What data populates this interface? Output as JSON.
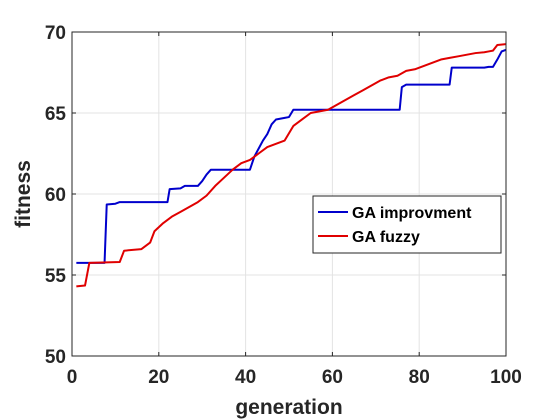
{
  "chart_data": {
    "type": "line",
    "xlabel": "generation",
    "ylabel": "fitness",
    "xlim": [
      0,
      100
    ],
    "ylim": [
      50,
      70
    ],
    "xticks": [
      0,
      20,
      40,
      60,
      80,
      100
    ],
    "yticks": [
      50,
      55,
      60,
      65,
      70
    ],
    "grid": true,
    "legend": "right",
    "series": [
      {
        "name": "GA improvment",
        "color": "#0000cc",
        "points": [
          [
            1,
            55.75
          ],
          [
            7.5,
            55.75
          ],
          [
            8,
            59.35
          ],
          [
            10,
            59.4
          ],
          [
            11,
            59.5
          ],
          [
            22,
            59.5
          ],
          [
            22.5,
            60.3
          ],
          [
            25,
            60.35
          ],
          [
            26,
            60.5
          ],
          [
            29,
            60.5
          ],
          [
            30,
            60.8
          ],
          [
            31,
            61.2
          ],
          [
            32,
            61.5
          ],
          [
            41,
            61.5
          ],
          [
            42,
            62.3
          ],
          [
            43,
            62.8
          ],
          [
            44,
            63.3
          ],
          [
            45,
            63.7
          ],
          [
            46,
            64.3
          ],
          [
            47,
            64.6
          ],
          [
            49,
            64.7
          ],
          [
            50,
            64.75
          ],
          [
            51,
            65.2
          ],
          [
            75.5,
            65.2
          ],
          [
            76,
            66.6
          ],
          [
            77,
            66.75
          ],
          [
            87,
            66.75
          ],
          [
            87.5,
            67.8
          ],
          [
            95,
            67.8
          ],
          [
            96,
            67.85
          ],
          [
            97,
            67.85
          ],
          [
            98,
            68.3
          ],
          [
            99,
            68.8
          ],
          [
            100,
            68.9
          ]
        ]
      },
      {
        "name": "GA fuzzy",
        "color": "#e00000",
        "points": [
          [
            1,
            54.3
          ],
          [
            3,
            54.35
          ],
          [
            4,
            55.75
          ],
          [
            11,
            55.8
          ],
          [
            12,
            56.5
          ],
          [
            16,
            56.6
          ],
          [
            18,
            57
          ],
          [
            19,
            57.7
          ],
          [
            21,
            58.2
          ],
          [
            23,
            58.6
          ],
          [
            25,
            58.9
          ],
          [
            27,
            59.2
          ],
          [
            29,
            59.5
          ],
          [
            31,
            59.9
          ],
          [
            33,
            60.5
          ],
          [
            35,
            61.0
          ],
          [
            37,
            61.5
          ],
          [
            39,
            61.9
          ],
          [
            41,
            62.1
          ],
          [
            43,
            62.5
          ],
          [
            45,
            62.9
          ],
          [
            47,
            63.1
          ],
          [
            49,
            63.3
          ],
          [
            51,
            64.2
          ],
          [
            53,
            64.6
          ],
          [
            55,
            65.0
          ],
          [
            57,
            65.1
          ],
          [
            59,
            65.2
          ],
          [
            61,
            65.5
          ],
          [
            63,
            65.8
          ],
          [
            65,
            66.1
          ],
          [
            67,
            66.4
          ],
          [
            69,
            66.7
          ],
          [
            71,
            67.0
          ],
          [
            73,
            67.2
          ],
          [
            75,
            67.3
          ],
          [
            77,
            67.6
          ],
          [
            79,
            67.7
          ],
          [
            81,
            67.9
          ],
          [
            83,
            68.1
          ],
          [
            85,
            68.3
          ],
          [
            87,
            68.4
          ],
          [
            89,
            68.5
          ],
          [
            91,
            68.6
          ],
          [
            93,
            68.7
          ],
          [
            95,
            68.75
          ],
          [
            96,
            68.8
          ],
          [
            97,
            68.85
          ],
          [
            98,
            69.2
          ],
          [
            100,
            69.25
          ]
        ]
      }
    ]
  }
}
